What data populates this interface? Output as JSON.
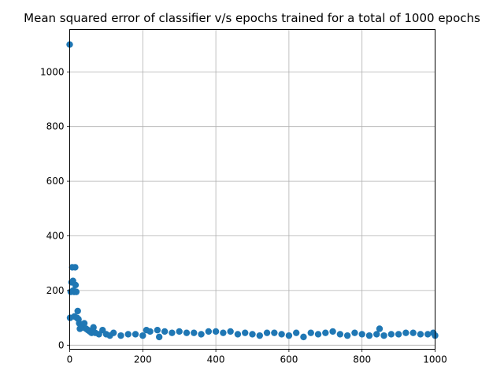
{
  "chart_data": {
    "type": "scatter",
    "title": "Mean squared error of classifier v/s epochs trained for a total of 1000 epochs",
    "xlabel": "",
    "ylabel": "",
    "xlim": [
      0,
      1000
    ],
    "ylim": [
      -15,
      1155
    ],
    "xticks": [
      0,
      200,
      400,
      600,
      800,
      1000
    ],
    "yticks": [
      0,
      200,
      400,
      600,
      800,
      1000
    ],
    "grid": true,
    "marker_color": "#1f77b4",
    "series": [
      {
        "points": [
          [
            0,
            1100
          ],
          [
            1,
            100
          ],
          [
            3,
            195
          ],
          [
            5,
            230
          ],
          [
            7,
            285
          ],
          [
            9,
            235
          ],
          [
            10,
            200
          ],
          [
            12,
            195
          ],
          [
            13,
            105
          ],
          [
            15,
            285
          ],
          [
            16,
            220
          ],
          [
            18,
            195
          ],
          [
            20,
            100
          ],
          [
            22,
            125
          ],
          [
            24,
            95
          ],
          [
            26,
            80
          ],
          [
            28,
            60
          ],
          [
            30,
            75
          ],
          [
            33,
            70
          ],
          [
            36,
            65
          ],
          [
            40,
            80
          ],
          [
            45,
            60
          ],
          [
            50,
            55
          ],
          [
            55,
            50
          ],
          [
            60,
            45
          ],
          [
            65,
            65
          ],
          [
            70,
            45
          ],
          [
            80,
            40
          ],
          [
            90,
            55
          ],
          [
            100,
            40
          ],
          [
            110,
            35
          ],
          [
            120,
            45
          ],
          [
            140,
            35
          ],
          [
            160,
            40
          ],
          [
            180,
            40
          ],
          [
            200,
            35
          ],
          [
            210,
            55
          ],
          [
            220,
            50
          ],
          [
            240,
            55
          ],
          [
            245,
            30
          ],
          [
            260,
            50
          ],
          [
            280,
            45
          ],
          [
            300,
            50
          ],
          [
            320,
            45
          ],
          [
            340,
            45
          ],
          [
            360,
            40
          ],
          [
            380,
            50
          ],
          [
            400,
            50
          ],
          [
            420,
            45
          ],
          [
            440,
            50
          ],
          [
            460,
            40
          ],
          [
            480,
            45
          ],
          [
            500,
            40
          ],
          [
            520,
            35
          ],
          [
            540,
            45
          ],
          [
            560,
            45
          ],
          [
            580,
            40
          ],
          [
            600,
            35
          ],
          [
            620,
            45
          ],
          [
            640,
            30
          ],
          [
            660,
            45
          ],
          [
            680,
            40
          ],
          [
            700,
            45
          ],
          [
            720,
            50
          ],
          [
            740,
            40
          ],
          [
            760,
            35
          ],
          [
            780,
            45
          ],
          [
            800,
            40
          ],
          [
            820,
            35
          ],
          [
            840,
            40
          ],
          [
            848,
            60
          ],
          [
            860,
            35
          ],
          [
            880,
            40
          ],
          [
            900,
            40
          ],
          [
            920,
            45
          ],
          [
            940,
            45
          ],
          [
            960,
            40
          ],
          [
            980,
            40
          ],
          [
            995,
            45
          ],
          [
            1000,
            35
          ]
        ]
      }
    ]
  }
}
